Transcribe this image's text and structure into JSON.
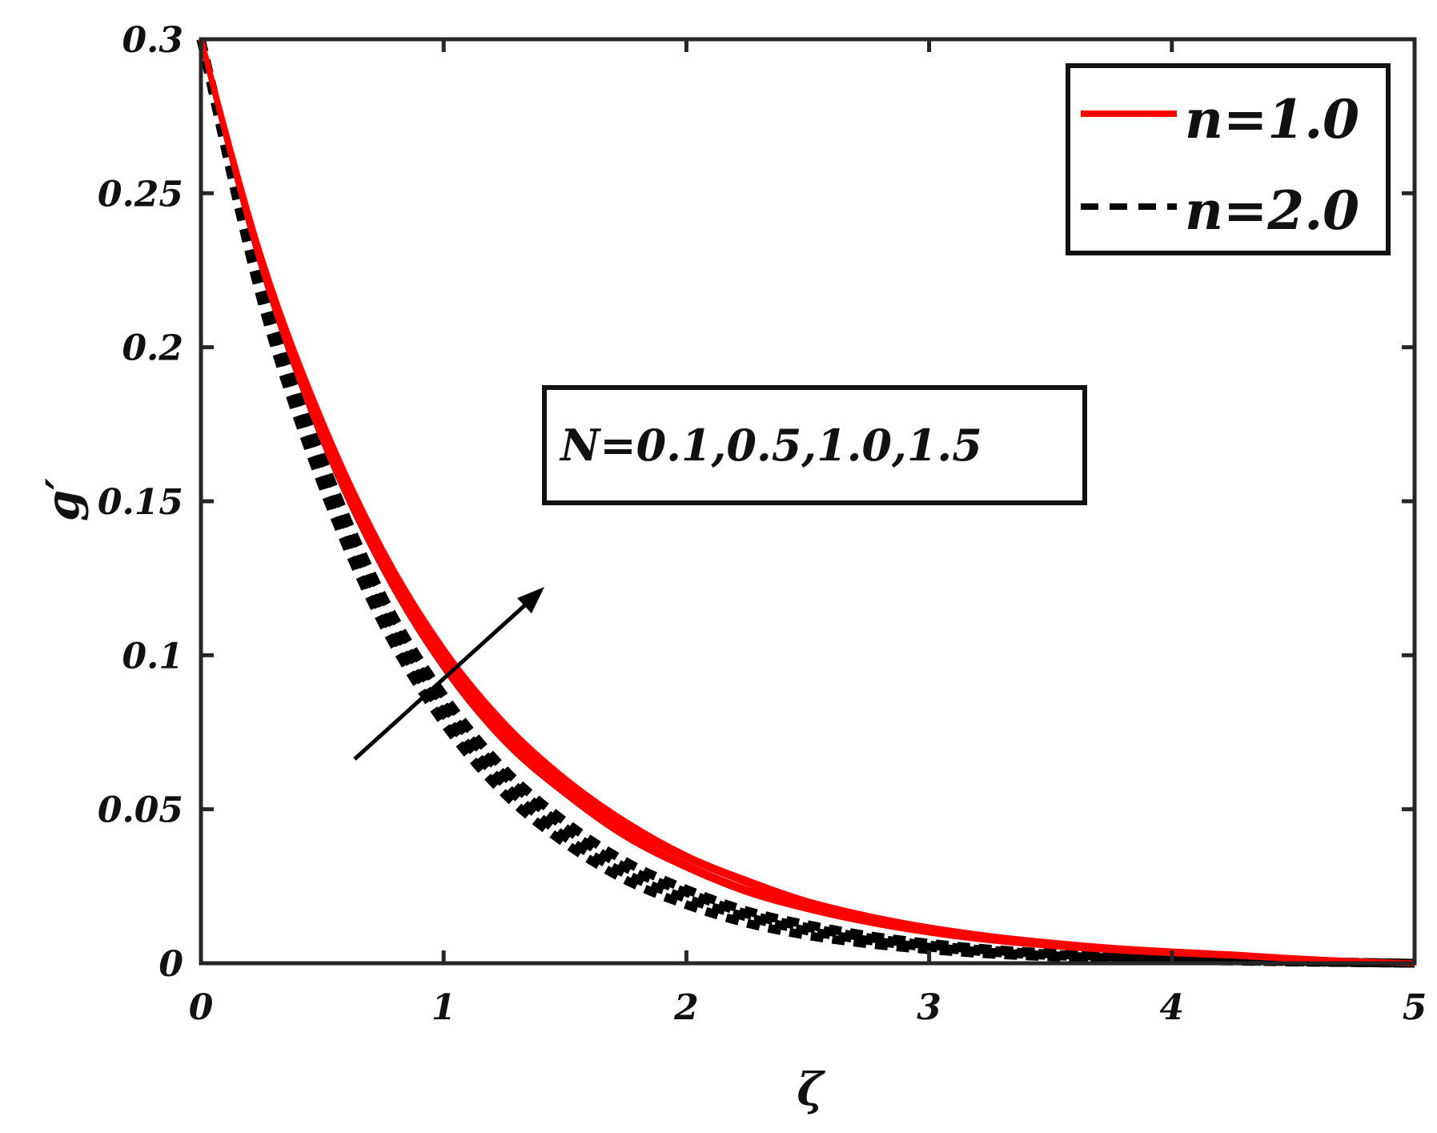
{
  "chart_data": {
    "type": "line",
    "xlabel": "ζ",
    "ylabel": "g′",
    "xlim": [
      0,
      5
    ],
    "ylim": [
      0,
      0.3
    ],
    "xticks": [
      0,
      1,
      2,
      3,
      4,
      5
    ],
    "yticks": [
      0,
      0.05,
      0.1,
      0.15,
      0.2,
      0.25,
      0.3
    ],
    "xtick_labels": [
      "0",
      "1",
      "2",
      "3",
      "4",
      "5"
    ],
    "ytick_labels": [
      "0",
      "0.05",
      "0.1",
      "0.15",
      "0.2",
      "0.25",
      "0.3"
    ],
    "grid": false,
    "legend_position": "top-right",
    "annotation": "N=0.1,0.5,1.0,1.5",
    "legend": [
      {
        "label": "n=1.0",
        "color": "#ff0000",
        "style": "solid"
      },
      {
        "label": "n=2.0",
        "color": "#000000",
        "style": "dashed"
      }
    ],
    "x": [
      0,
      0.25,
      0.5,
      0.75,
      1.0,
      1.25,
      1.5,
      1.75,
      2.0,
      2.25,
      2.5,
      2.75,
      3.0,
      3.25,
      3.5,
      3.75,
      4.0,
      4.25,
      4.5,
      4.75,
      5.0
    ],
    "series": [
      {
        "group": "n=1.0",
        "N": 0.1,
        "color": "#ff0000",
        "style": "solid",
        "values": [
          0.3,
          0.226,
          0.17,
          0.128,
          0.096,
          0.072,
          0.055,
          0.041,
          0.031,
          0.023,
          0.0175,
          0.0132,
          0.0099,
          0.0074,
          0.0056,
          0.0042,
          0.0032,
          0.0024,
          0.0014,
          0.0006,
          0.0
        ]
      },
      {
        "group": "n=1.0",
        "N": 0.5,
        "color": "#ff0000",
        "style": "solid",
        "values": [
          0.3,
          0.227,
          0.172,
          0.13,
          0.098,
          0.074,
          0.056,
          0.042,
          0.032,
          0.024,
          0.0183,
          0.0138,
          0.0104,
          0.0078,
          0.0059,
          0.0044,
          0.0034,
          0.0025,
          0.0015,
          0.0006,
          0.0
        ]
      },
      {
        "group": "n=1.0",
        "N": 1.0,
        "color": "#ff0000",
        "style": "solid",
        "values": [
          0.3,
          0.228,
          0.174,
          0.132,
          0.1,
          0.076,
          0.058,
          0.044,
          0.034,
          0.026,
          0.0192,
          0.0146,
          0.011,
          0.0083,
          0.0063,
          0.0048,
          0.0036,
          0.0027,
          0.0016,
          0.0007,
          0.0
        ]
      },
      {
        "group": "n=1.0",
        "N": 1.5,
        "color": "#ff0000",
        "style": "solid",
        "values": [
          0.3,
          0.229,
          0.176,
          0.134,
          0.102,
          0.078,
          0.06,
          0.046,
          0.035,
          0.027,
          0.0202,
          0.0154,
          0.0117,
          0.0089,
          0.0068,
          0.0051,
          0.0039,
          0.0029,
          0.0017,
          0.0007,
          0.0
        ]
      },
      {
        "group": "n=2.0",
        "N": 0.1,
        "color": "#000000",
        "style": "dashed",
        "values": [
          0.3,
          0.215,
          0.155,
          0.11,
          0.078,
          0.055,
          0.039,
          0.027,
          0.019,
          0.013,
          0.009,
          0.0063,
          0.0044,
          0.003,
          0.0021,
          0.0015,
          0.001,
          0.0007,
          0.0004,
          0.0002,
          0.0
        ]
      },
      {
        "group": "n=2.0",
        "N": 0.5,
        "color": "#000000",
        "style": "dashed",
        "values": [
          0.3,
          0.217,
          0.158,
          0.113,
          0.081,
          0.058,
          0.041,
          0.029,
          0.021,
          0.015,
          0.0105,
          0.0074,
          0.0052,
          0.0036,
          0.0025,
          0.0018,
          0.0012,
          0.0008,
          0.0005,
          0.0002,
          0.0
        ]
      },
      {
        "group": "n=2.0",
        "N": 1.0,
        "color": "#000000",
        "style": "dashed",
        "values": [
          0.3,
          0.219,
          0.161,
          0.116,
          0.084,
          0.061,
          0.044,
          0.031,
          0.023,
          0.016,
          0.0116,
          0.0083,
          0.0059,
          0.0042,
          0.003,
          0.0021,
          0.0015,
          0.001,
          0.0006,
          0.0003,
          0.0
        ]
      },
      {
        "group": "n=2.0",
        "N": 1.5,
        "color": "#000000",
        "style": "dashed",
        "values": [
          0.3,
          0.221,
          0.164,
          0.119,
          0.087,
          0.063,
          0.046,
          0.033,
          0.024,
          0.017,
          0.0125,
          0.009,
          0.0065,
          0.0046,
          0.0033,
          0.0023,
          0.0016,
          0.0011,
          0.0007,
          0.0003,
          0.0
        ]
      }
    ]
  }
}
